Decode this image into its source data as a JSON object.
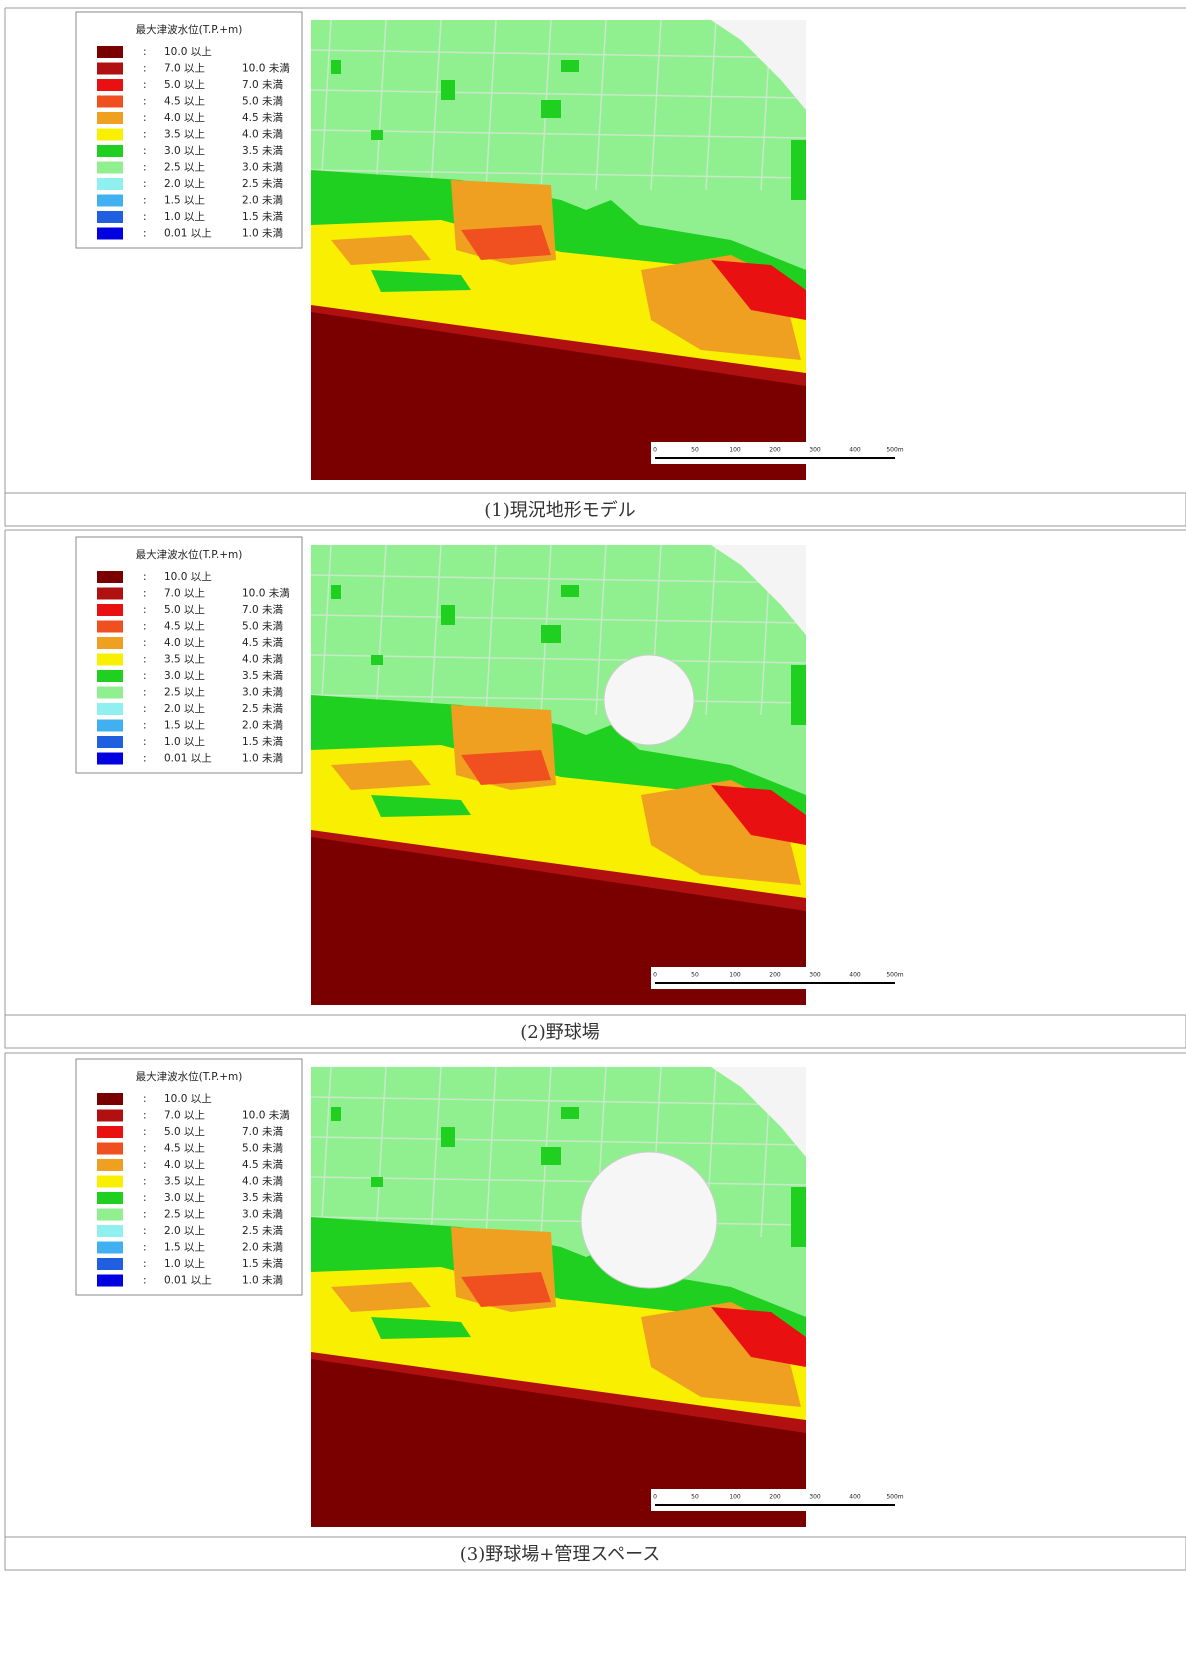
{
  "legend": {
    "title": "最大津波水位(T.P.+m)",
    "separator": ":",
    "rows": [
      {
        "color": "#7a0000",
        "from": "10.0 以上"
      },
      {
        "color": "#b01010",
        "from": "7.0 以上",
        "to": "10.0 未満"
      },
      {
        "color": "#e81010",
        "from": "5.0 以上",
        "to": "7.0 未満"
      },
      {
        "color": "#f05020",
        "from": "4.5 以上",
        "to": "5.0 未満"
      },
      {
        "color": "#f0a020",
        "from": "4.0 以上",
        "to": "4.5 未満"
      },
      {
        "color": "#f8f000",
        "from": "3.5 以上",
        "to": "4.0 未満"
      },
      {
        "color": "#20d020",
        "from": "3.0 以上",
        "to": "3.5 未満"
      },
      {
        "color": "#90f090",
        "from": "2.5 以上",
        "to": "3.0 未満"
      },
      {
        "color": "#90f0f0",
        "from": "2.0 以上",
        "to": "2.5 未満"
      },
      {
        "color": "#40b0f0",
        "from": "1.5 以上",
        "to": "2.0 未満"
      },
      {
        "color": "#2060e0",
        "from": "1.0 以上",
        "to": "1.5 未満"
      },
      {
        "color": "#0000e0",
        "from": "0.01 以上",
        "to": "1.0 未満"
      }
    ]
  },
  "scale_labels": [
    "0",
    "50",
    "100",
    "200",
    "300",
    "400",
    "500m"
  ],
  "panels": [
    {
      "caption": "(1)現況地形モデル"
    },
    {
      "caption": "(2)野球場"
    },
    {
      "caption": "(3)野球場+管理スペース"
    }
  ]
}
